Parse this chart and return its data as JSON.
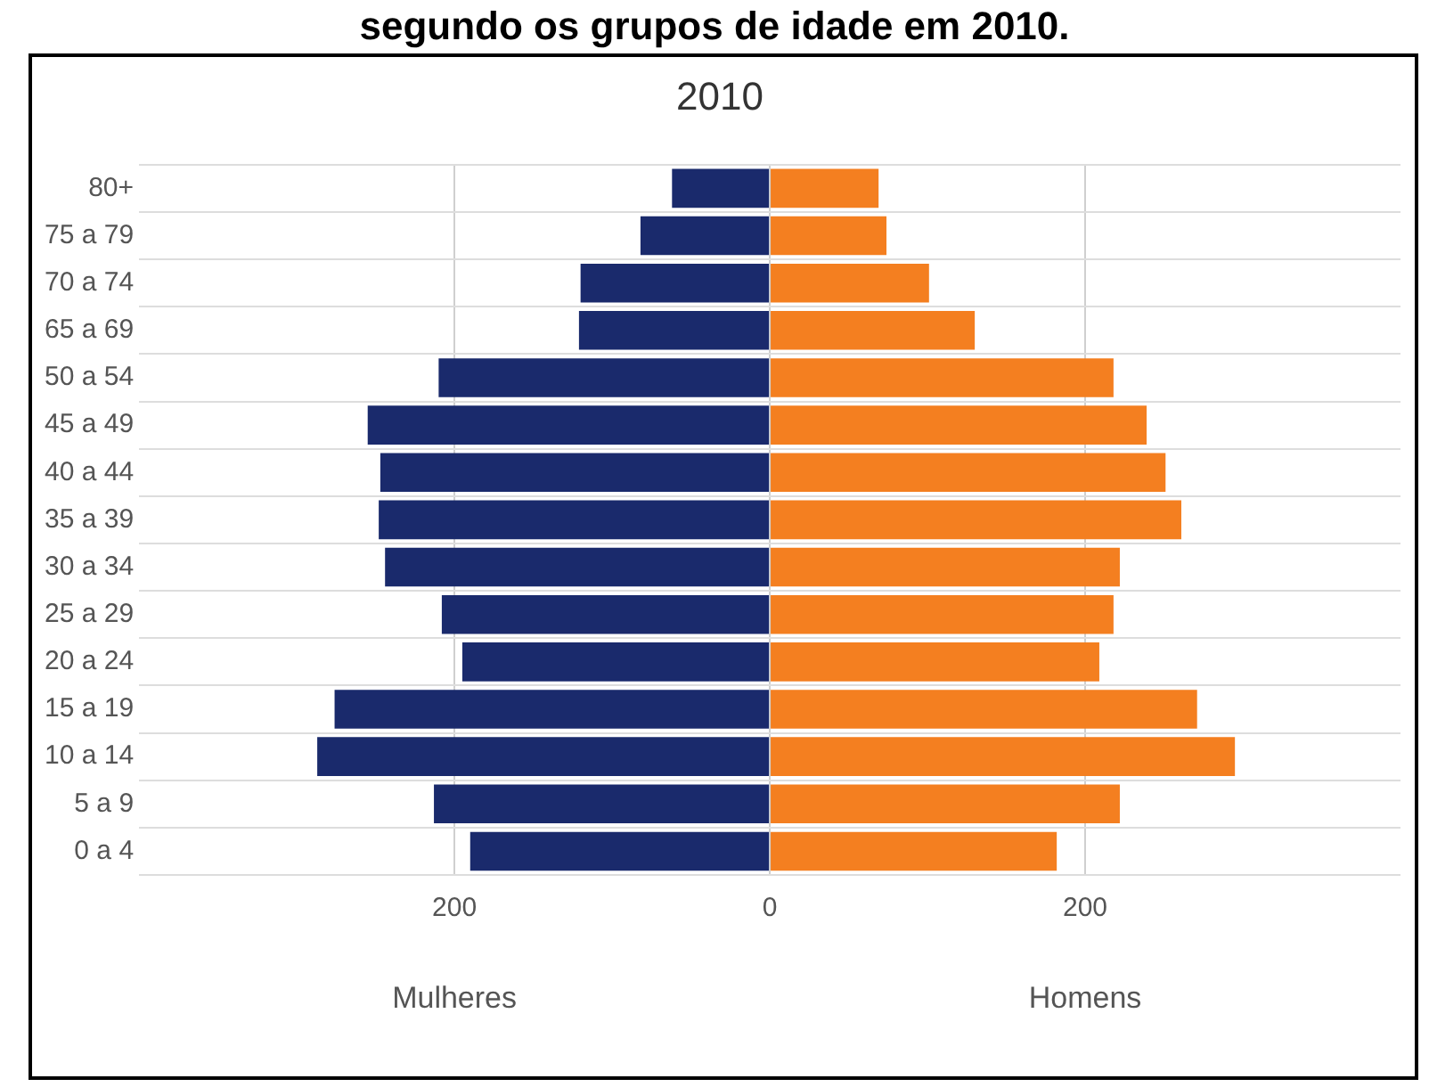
{
  "chart_data": {
    "type": "bar",
    "orientation": "horizontal",
    "title": "segundo os grupos de idade em 2010.",
    "subtitle": "2010",
    "categories": [
      "80+",
      "75 a 79",
      "70 a 74",
      "65 a 69",
      "50 a 54",
      "45 a 49",
      "40 a 44",
      "35 a 39",
      "30 a 34",
      "25 a 29",
      "20 a 24",
      "15 a 19",
      "10 a 14",
      "5 a 9",
      "0 a 4"
    ],
    "series": [
      {
        "color": "#1a2a6c",
        "values": [
          -62,
          -82,
          -120,
          -121,
          -210,
          -255,
          -247,
          -248,
          -244,
          -208,
          -195,
          -276,
          -287,
          -213,
          -190
        ]
      },
      {
        "color": "#f47f20",
        "values": [
          69,
          74,
          101,
          130,
          218,
          239,
          251,
          261,
          222,
          218,
          209,
          271,
          295,
          222,
          182
        ]
      }
    ],
    "xlim": [
      -400,
      400
    ],
    "xticks": [
      {
        "value": -200,
        "label": "200"
      },
      0,
      200
    ],
    "annotations": [
      "Mulheres",
      "Homens"
    ],
    "stacked": true,
    "grid": true,
    "legend": false
  }
}
